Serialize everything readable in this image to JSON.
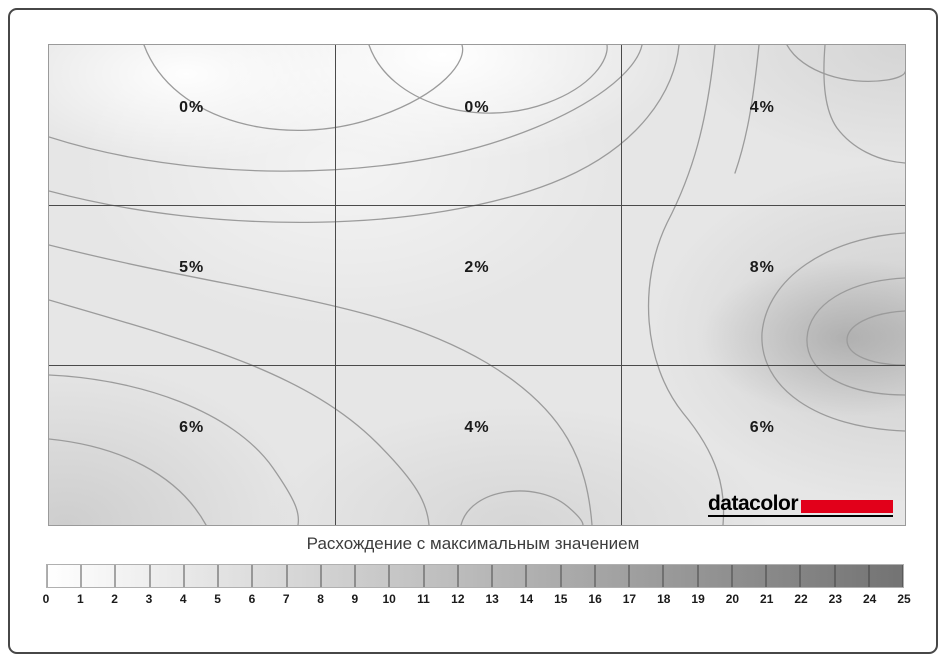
{
  "branding": {
    "logo_text": "datacolor",
    "accent_color": "#e2001a"
  },
  "chart_data": {
    "type": "heatmap",
    "subtype": "contour-uniformity-map",
    "title": "Расхождение с максимальным значением",
    "grid": {
      "rows": 3,
      "cols": 3,
      "labels": [
        [
          "0%",
          "0%",
          "4%"
        ],
        [
          "5%",
          "2%",
          "8%"
        ],
        [
          "6%",
          "4%",
          "6%"
        ]
      ],
      "values_percent": [
        [
          0,
          0,
          4
        ],
        [
          5,
          2,
          8
        ],
        [
          6,
          4,
          6
        ]
      ]
    },
    "colorbar": {
      "label": "Расхождение с максимальным значением",
      "min": 0,
      "max": 25,
      "ticks": [
        "0",
        "1",
        "2",
        "3",
        "4",
        "5",
        "6",
        "7",
        "8",
        "9",
        "10",
        "11",
        "12",
        "13",
        "14",
        "15",
        "16",
        "17",
        "18",
        "19",
        "20",
        "21",
        "22",
        "23",
        "24",
        "25"
      ],
      "start_color": "#ffffff",
      "end_color": "#737373"
    }
  }
}
